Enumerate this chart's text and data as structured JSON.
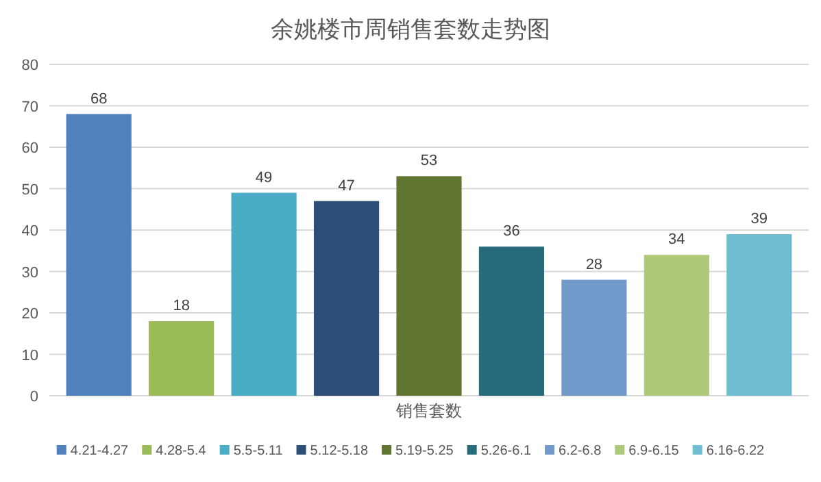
{
  "chart_data": {
    "type": "bar",
    "title": "余姚楼市周销售套数走势图",
    "categories": [
      "销售套数"
    ],
    "series": [
      {
        "name": "4.21-4.27",
        "color": "#4f81bd",
        "values": [
          68
        ]
      },
      {
        "name": "4.28-5.4",
        "color": "#9bbb59",
        "values": [
          18
        ]
      },
      {
        "name": "5.5-5.11",
        "color": "#4bacc6",
        "values": [
          49
        ]
      },
      {
        "name": "5.12-5.18",
        "color": "#2c4d75",
        "values": [
          47
        ]
      },
      {
        "name": "5.19-5.25",
        "color": "#5f7530",
        "values": [
          53
        ]
      },
      {
        "name": "5.26-6.1",
        "color": "#276a7c",
        "values": [
          36
        ]
      },
      {
        "name": "6.2-6.8",
        "color": "#729aca",
        "values": [
          28
        ]
      },
      {
        "name": "6.9-6.15",
        "color": "#afc97a",
        "values": [
          34
        ]
      },
      {
        "name": "6.16-6.22",
        "color": "#6fbdd1",
        "values": [
          39
        ]
      }
    ],
    "ylim": [
      0,
      80
    ],
    "yticks": [
      0,
      10,
      20,
      30,
      40,
      50,
      60,
      70,
      80
    ],
    "grid": "y",
    "legend": "bottom",
    "data_labels": true
  }
}
